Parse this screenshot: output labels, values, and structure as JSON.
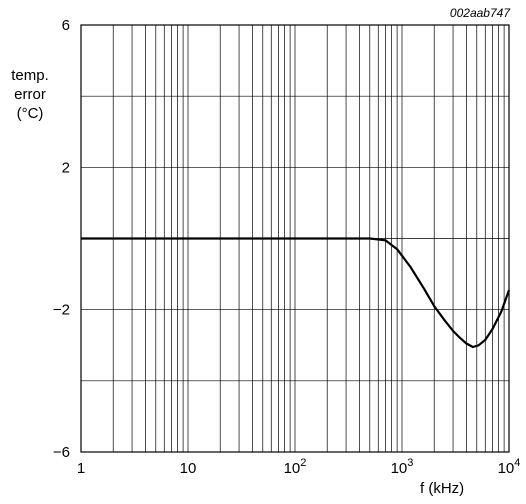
{
  "figure_ref": "002aab747",
  "chart_data": {
    "type": "line",
    "xlabel": "f (kHz)",
    "ylabel_lines": [
      "temp.",
      "error",
      "(°C)"
    ],
    "x_scale": "log",
    "xlim": [
      1,
      10000
    ],
    "ylim": [
      -6,
      6
    ],
    "x_ticks": [
      {
        "value": 1,
        "base": "1",
        "exp": ""
      },
      {
        "value": 10,
        "base": "10",
        "exp": ""
      },
      {
        "value": 100,
        "base": "10",
        "exp": "2"
      },
      {
        "value": 1000,
        "base": "10",
        "exp": "3"
      },
      {
        "value": 10000,
        "base": "10",
        "exp": "4"
      }
    ],
    "y_ticks": [
      {
        "value": 6,
        "label": "6"
      },
      {
        "value": 2,
        "label": "2"
      },
      {
        "value": -2,
        "label": "−2"
      },
      {
        "value": -6,
        "label": "−6"
      }
    ],
    "y_gridlines": [
      -6,
      -4,
      -2,
      0,
      2,
      4,
      6
    ],
    "grid": true,
    "series": [
      {
        "color": "#000000",
        "x": [
          1,
          10,
          100,
          500,
          700,
          900,
          1200,
          1600,
          2000,
          2500,
          3000,
          3500,
          4000,
          4600,
          5200,
          6000,
          7000,
          8500,
          10000
        ],
        "y": [
          0,
          0,
          0,
          0,
          -0.05,
          -0.3,
          -0.8,
          -1.4,
          -1.9,
          -2.3,
          -2.6,
          -2.8,
          -2.95,
          -3.05,
          -3.0,
          -2.85,
          -2.55,
          -2.05,
          -1.45
        ]
      }
    ]
  }
}
